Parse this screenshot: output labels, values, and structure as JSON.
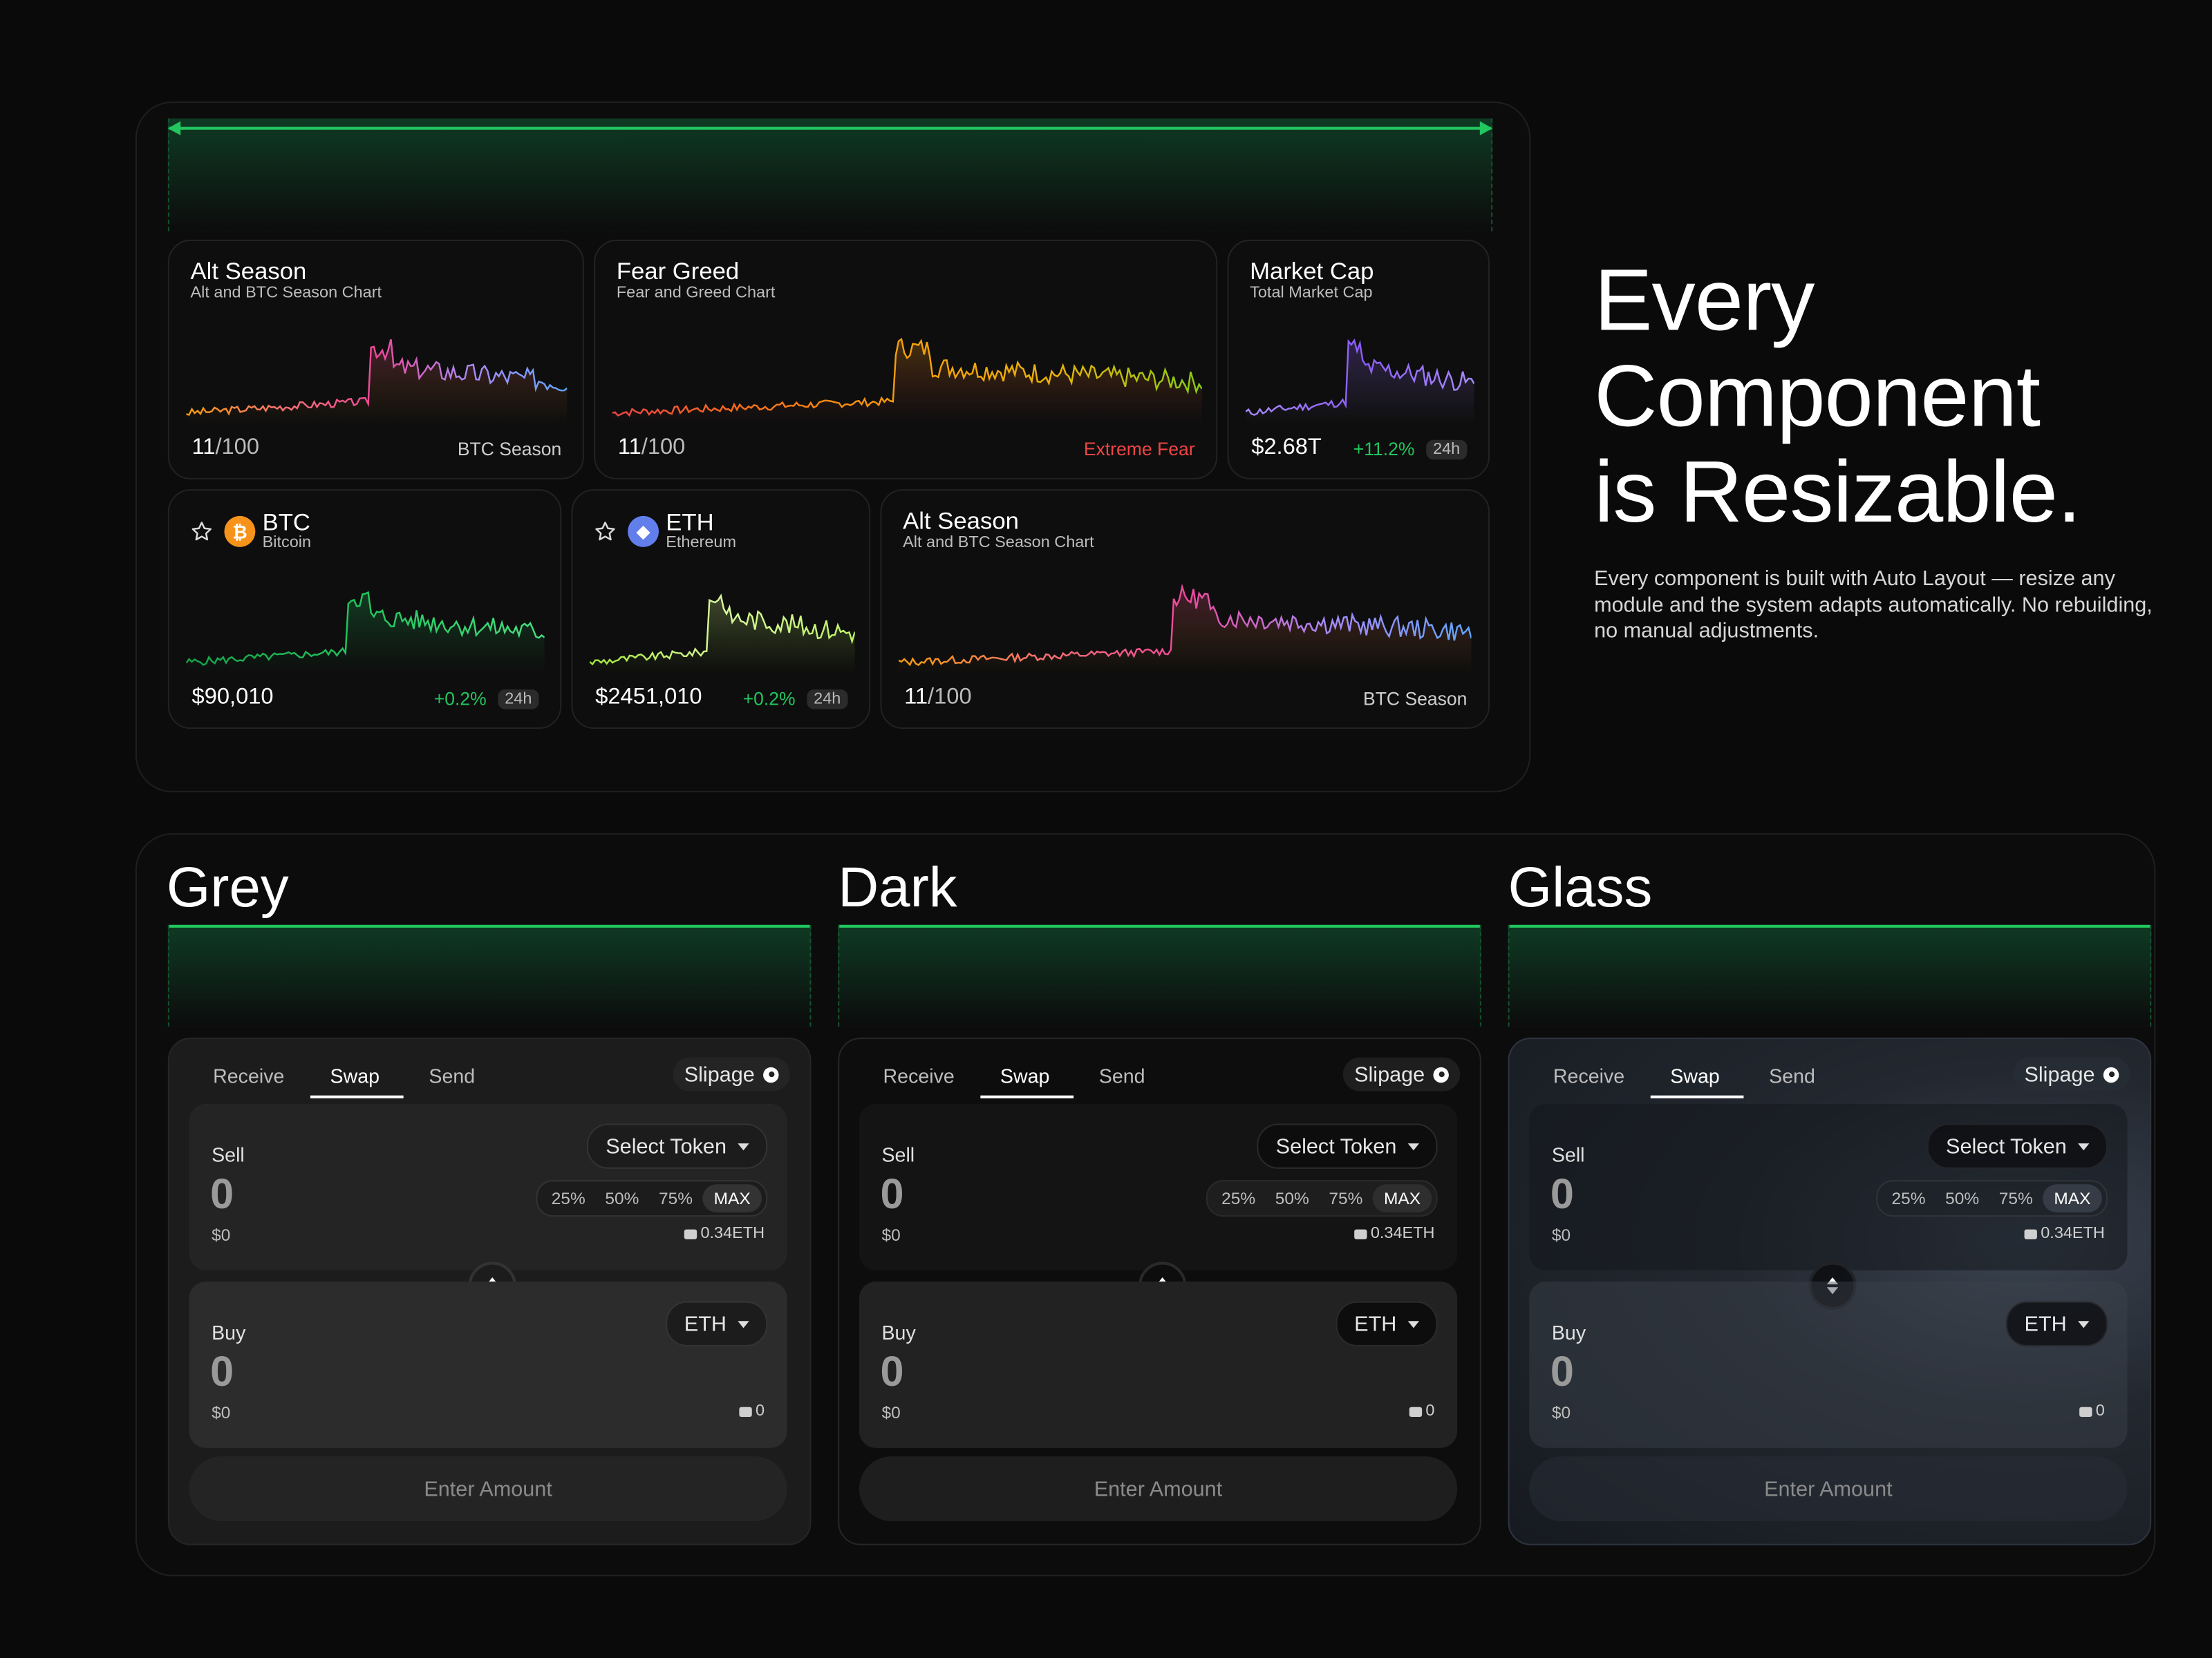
{
  "top": {
    "cards": {
      "alt_season_1": {
        "title": "Alt Season",
        "subtitle": "Alt and BTC Season Chart",
        "value_main": "11",
        "value_rest": "/100",
        "right_label": "BTC Season"
      },
      "fear_greed": {
        "title": "Fear Greed",
        "subtitle": "Fear and Greed Chart",
        "value_main": "11",
        "value_rest": "/100",
        "right_label": "Extreme Fear"
      },
      "market_cap": {
        "title": "Market Cap",
        "subtitle": "Total Market Cap",
        "value": "$2.68T",
        "change": "+11.2%",
        "period": "24h"
      },
      "btc": {
        "symbol": "BTC",
        "name": "Bitcoin",
        "coin_glyph": "₿",
        "value": "$90,010",
        "change": "+0.2%",
        "period": "24h"
      },
      "eth": {
        "symbol": "ETH",
        "name": "Ethereum",
        "coin_glyph": "◆",
        "value": "$2451,010",
        "change": "+0.2%",
        "period": "24h"
      },
      "alt_season_2": {
        "title": "Alt Season",
        "subtitle": "Alt and BTC Season Chart",
        "value_main": "11",
        "value_rest": "/100",
        "right_label": "BTC Season"
      }
    }
  },
  "heading": {
    "line1": "Every",
    "line2": "Component",
    "line3": "is Resizable."
  },
  "description": "Every component is built with Auto Layout — resize any module and the system adapts automatically. No rebuilding, no manual adjustments.",
  "themes": {
    "grey": {
      "label": "Grey"
    },
    "dark": {
      "label": "Dark"
    },
    "glass": {
      "label": "Glass"
    }
  },
  "swap": {
    "tabs": [
      "Receive",
      "Swap",
      "Send"
    ],
    "active_tab": "Swap",
    "slippage": "Slipage",
    "sell": {
      "label": "Sell",
      "amount": "0",
      "usd": "$0",
      "token_button": "Select Token",
      "percents": [
        "25%",
        "50%",
        "75%",
        "MAX"
      ],
      "balance": "0.34ETH"
    },
    "buy": {
      "label": "Buy",
      "amount": "0",
      "usd": "$0",
      "token_button": "ETH",
      "balance": "0"
    },
    "cta": "Enter Amount"
  },
  "colors": {
    "accent": "#22c55e",
    "negative": "#ef4444",
    "btc": "#f7931a",
    "eth": "#627eea"
  }
}
